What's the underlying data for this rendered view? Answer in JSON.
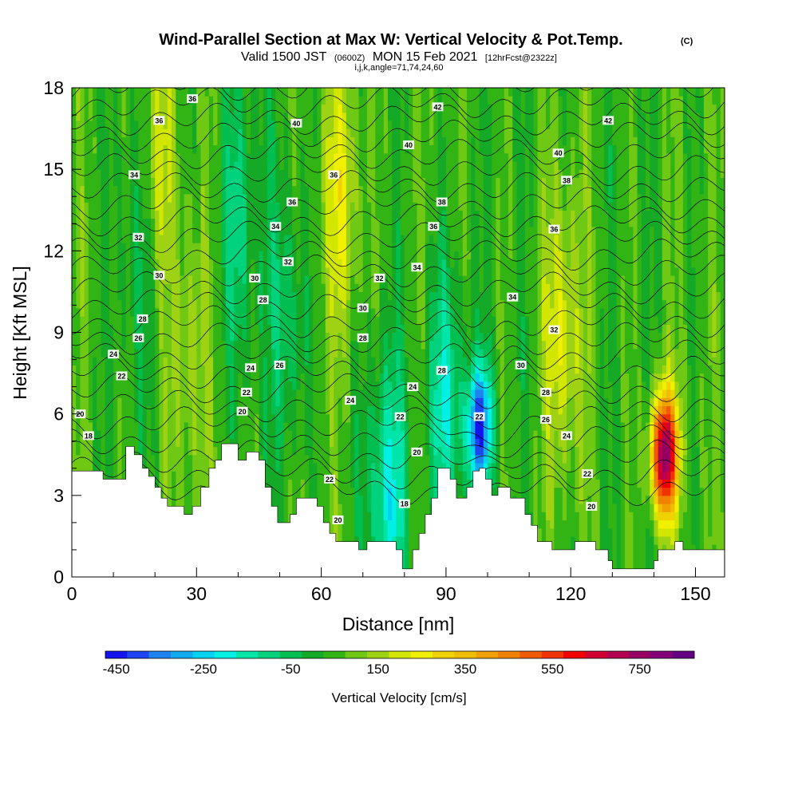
{
  "chart_data": {
    "type": "heatmap",
    "title": "Wind-Parallel Section at Max W: Vertical Velocity & Pot.Temp.",
    "title_mark": "(C)",
    "subtitle": {
      "valid_prefix": "Valid 1500 JST",
      "utc": "(0600Z)",
      "date": "MON 15 Feb 2021",
      "forecast": "[12hrFcst@2322z]"
    },
    "index_line": "i,j,k,angle=71,74,24,60",
    "xlabel": "Distance [nm]",
    "ylabel": "Height [Kft MSL]",
    "xlim": [
      0,
      157
    ],
    "ylim": [
      0,
      18
    ],
    "x_ticks": [
      0,
      30,
      60,
      90,
      120,
      150
    ],
    "y_ticks": [
      0,
      3,
      6,
      9,
      12,
      15,
      18
    ],
    "colorbar": {
      "label": "Vertical Velocity [cm/s]",
      "tick_labels": [
        "-450",
        "-250",
        "-50",
        "150",
        "350",
        "550",
        "750"
      ],
      "colors": [
        "#1414f0",
        "#1e46f0",
        "#1e82f0",
        "#14aaf0",
        "#00d2f0",
        "#00f0e6",
        "#00e6aa",
        "#00d27d",
        "#00be50",
        "#14aa28",
        "#32b414",
        "#6ec814",
        "#a0d214",
        "#d2e600",
        "#f0f000",
        "#f0d200",
        "#f0be00",
        "#f0a000",
        "#f08200",
        "#f05a00",
        "#f03200",
        "#f00000",
        "#d20032",
        "#b40050",
        "#960064",
        "#820078",
        "#640082"
      ]
    },
    "terrain": [
      [
        0,
        3.9
      ],
      [
        7.5,
        3.9
      ],
      [
        7.5,
        3.6
      ],
      [
        13,
        3.6
      ],
      [
        13,
        4.8
      ],
      [
        15,
        4.8
      ],
      [
        15,
        4.5
      ],
      [
        17,
        4.5
      ],
      [
        17,
        4
      ],
      [
        18.5,
        4
      ],
      [
        18.5,
        3.7
      ],
      [
        20,
        3.7
      ],
      [
        20,
        3.3
      ],
      [
        21.5,
        3.3
      ],
      [
        21.5,
        2.9
      ],
      [
        23,
        2.9
      ],
      [
        23,
        2.6
      ],
      [
        27,
        2.6
      ],
      [
        27,
        2.3
      ],
      [
        29,
        2.3
      ],
      [
        29,
        2.6
      ],
      [
        31,
        2.6
      ],
      [
        31,
        3.3
      ],
      [
        33,
        3.3
      ],
      [
        33,
        4
      ],
      [
        34.5,
        4
      ],
      [
        34.5,
        4.3
      ],
      [
        36,
        4.3
      ],
      [
        36,
        4.9
      ],
      [
        40,
        4.9
      ],
      [
        40,
        4.3
      ],
      [
        42,
        4.3
      ],
      [
        42,
        4.6
      ],
      [
        45,
        4.6
      ],
      [
        45,
        4.3
      ],
      [
        46.5,
        4.3
      ],
      [
        46.5,
        3.3
      ],
      [
        48,
        3.3
      ],
      [
        48,
        2.6
      ],
      [
        49.5,
        2.6
      ],
      [
        49.5,
        2
      ],
      [
        52.5,
        2
      ],
      [
        52.5,
        2.3
      ],
      [
        54,
        2.3
      ],
      [
        54,
        2.9
      ],
      [
        59,
        2.9
      ],
      [
        59,
        2.6
      ],
      [
        60.5,
        2.6
      ],
      [
        60.5,
        2
      ],
      [
        62,
        2
      ],
      [
        62,
        1.6
      ],
      [
        63.5,
        1.6
      ],
      [
        63.5,
        1.3
      ],
      [
        66,
        1.3
      ],
      [
        66,
        1.3
      ],
      [
        69,
        1.3
      ],
      [
        69,
        1
      ],
      [
        71,
        1
      ],
      [
        71,
        1.3
      ],
      [
        78,
        1.3
      ],
      [
        78,
        1
      ],
      [
        79.5,
        1
      ],
      [
        79.5,
        0.3
      ],
      [
        82,
        0.3
      ],
      [
        82,
        1
      ],
      [
        83.5,
        1
      ],
      [
        83.5,
        1.6
      ],
      [
        85,
        1.6
      ],
      [
        85,
        2.3
      ],
      [
        86.5,
        2.3
      ],
      [
        86.5,
        2.9
      ],
      [
        88,
        2.9
      ],
      [
        88,
        4
      ],
      [
        91,
        4
      ],
      [
        91,
        3.6
      ],
      [
        92.5,
        3.6
      ],
      [
        92.5,
        2.9
      ],
      [
        95,
        2.9
      ],
      [
        95,
        3.3
      ],
      [
        96.5,
        3.3
      ],
      [
        96.5,
        3.9
      ],
      [
        98,
        3.9
      ],
      [
        98,
        4
      ],
      [
        99.5,
        4
      ],
      [
        99.5,
        3.6
      ],
      [
        101,
        3.6
      ],
      [
        101,
        3
      ],
      [
        102.5,
        3
      ],
      [
        102.5,
        3.3
      ],
      [
        105.5,
        3.3
      ],
      [
        105.5,
        2.9
      ],
      [
        109,
        2.9
      ],
      [
        109,
        2.3
      ],
      [
        110.5,
        2.3
      ],
      [
        110.5,
        1.9
      ],
      [
        112,
        1.9
      ],
      [
        112,
        1.3
      ],
      [
        115.5,
        1.3
      ],
      [
        115.5,
        1
      ],
      [
        121,
        1
      ],
      [
        121,
        1.3
      ],
      [
        126,
        1.3
      ],
      [
        126,
        1
      ],
      [
        129,
        1
      ],
      [
        129,
        0.6
      ],
      [
        130,
        0.6
      ],
      [
        130,
        0.3
      ],
      [
        140,
        0.3
      ],
      [
        140,
        0.6
      ],
      [
        141,
        0.6
      ],
      [
        141,
        1
      ],
      [
        145,
        1
      ],
      [
        145,
        1.3
      ],
      [
        147,
        1.3
      ],
      [
        147,
        1
      ],
      [
        157,
        1
      ]
    ],
    "w_features": [
      {
        "x": 142.5,
        "z": 4.5,
        "w": 720
      },
      {
        "x": 98,
        "z": 5.5,
        "w": -450
      },
      {
        "x": 90,
        "z": 6.5,
        "w": -220
      },
      {
        "x": 76,
        "z": 3.0,
        "w": -230
      },
      {
        "x": 118,
        "z": 9,
        "w": 170
      },
      {
        "x": 65,
        "z": 14,
        "w": 170
      },
      {
        "x": 20,
        "z": 15.5,
        "w": 160
      },
      {
        "x": 40,
        "z": 13,
        "w": -140
      },
      {
        "x": 16,
        "z": 13,
        "w": -100
      },
      {
        "x": 52,
        "z": 9.5,
        "w": -130
      },
      {
        "x": 28,
        "z": 8,
        "w": 100
      }
    ],
    "theta_contour_labels": [
      {
        "label": "36",
        "x": 29,
        "z": 17.6
      },
      {
        "label": "36",
        "x": 21,
        "z": 16.8
      },
      {
        "label": "40",
        "x": 54,
        "z": 16.7
      },
      {
        "label": "42",
        "x": 88,
        "z": 17.3
      },
      {
        "label": "42",
        "x": 129,
        "z": 16.8
      },
      {
        "label": "34",
        "x": 15,
        "z": 14.8
      },
      {
        "label": "40",
        "x": 81,
        "z": 15.9
      },
      {
        "label": "40",
        "x": 117,
        "z": 15.6
      },
      {
        "label": "36",
        "x": 63,
        "z": 14.8
      },
      {
        "label": "38",
        "x": 119,
        "z": 14.6
      },
      {
        "label": "36",
        "x": 53,
        "z": 13.8
      },
      {
        "label": "38",
        "x": 89,
        "z": 13.8
      },
      {
        "label": "34",
        "x": 49,
        "z": 12.9
      },
      {
        "label": "36",
        "x": 87,
        "z": 12.9
      },
      {
        "label": "36",
        "x": 116,
        "z": 12.8
      },
      {
        "label": "32",
        "x": 16,
        "z": 12.5
      },
      {
        "label": "32",
        "x": 52,
        "z": 11.6
      },
      {
        "label": "30",
        "x": 21,
        "z": 11.1
      },
      {
        "label": "30",
        "x": 44,
        "z": 11.0
      },
      {
        "label": "32",
        "x": 74,
        "z": 11.0
      },
      {
        "label": "34",
        "x": 83,
        "z": 11.4
      },
      {
        "label": "28",
        "x": 46,
        "z": 10.2
      },
      {
        "label": "34",
        "x": 106,
        "z": 10.3
      },
      {
        "label": "30",
        "x": 70,
        "z": 9.9
      },
      {
        "label": "28",
        "x": 17,
        "z": 9.5
      },
      {
        "label": "32",
        "x": 116,
        "z": 9.1
      },
      {
        "label": "26",
        "x": 16,
        "z": 8.8
      },
      {
        "label": "28",
        "x": 70,
        "z": 8.8
      },
      {
        "label": "24",
        "x": 10,
        "z": 8.2
      },
      {
        "label": "24",
        "x": 43,
        "z": 7.7
      },
      {
        "label": "26",
        "x": 50,
        "z": 7.8
      },
      {
        "label": "28",
        "x": 89,
        "z": 7.6
      },
      {
        "label": "30",
        "x": 108,
        "z": 7.8
      },
      {
        "label": "22",
        "x": 12,
        "z": 7.4
      },
      {
        "label": "24",
        "x": 82,
        "z": 7.0
      },
      {
        "label": "22",
        "x": 42,
        "z": 6.8
      },
      {
        "label": "28",
        "x": 114,
        "z": 6.8
      },
      {
        "label": "24",
        "x": 67,
        "z": 6.5
      },
      {
        "label": "20",
        "x": 41,
        "z": 6.1
      },
      {
        "label": "20",
        "x": 2,
        "z": 6.0
      },
      {
        "label": "22",
        "x": 79,
        "z": 5.9
      },
      {
        "label": "22",
        "x": 98,
        "z": 5.9
      },
      {
        "label": "26",
        "x": 114,
        "z": 5.8
      },
      {
        "label": "18",
        "x": 4,
        "z": 5.2
      },
      {
        "label": "24",
        "x": 119,
        "z": 5.2
      },
      {
        "label": "20",
        "x": 83,
        "z": 4.6
      },
      {
        "label": "22",
        "x": 62,
        "z": 3.6
      },
      {
        "label": "22",
        "x": 124,
        "z": 3.8
      },
      {
        "label": "20",
        "x": 64,
        "z": 2.1
      },
      {
        "label": "18",
        "x": 80,
        "z": 2.7
      },
      {
        "label": "20",
        "x": 125,
        "z": 2.6
      }
    ]
  }
}
